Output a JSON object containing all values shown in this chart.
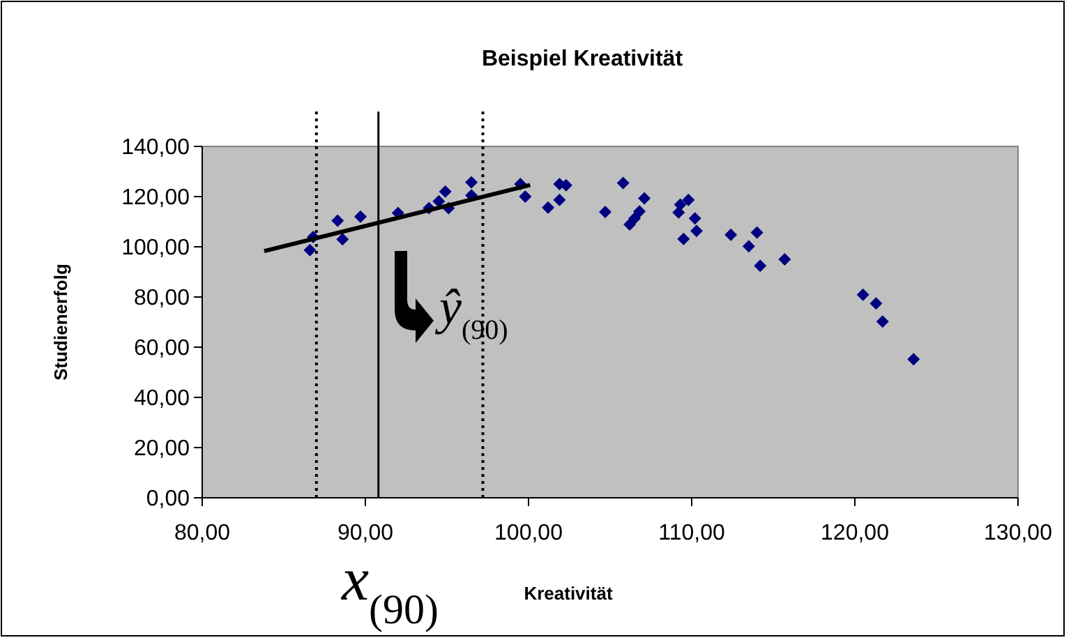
{
  "chart_data": {
    "type": "scatter",
    "title": "Beispiel Kreativität",
    "xlabel": "Kreativität",
    "ylabel": "Studienerfolg",
    "xlim": [
      80,
      130
    ],
    "ylim": [
      0,
      140
    ],
    "xticks": [
      {
        "value": 80,
        "label": "80,00"
      },
      {
        "value": 90,
        "label": "90,00"
      },
      {
        "value": 100,
        "label": "100,00"
      },
      {
        "value": 110,
        "label": "110,00"
      },
      {
        "value": 120,
        "label": "120,00"
      },
      {
        "value": 130,
        "label": "130,00"
      }
    ],
    "yticks": [
      {
        "value": 0,
        "label": "0,00"
      },
      {
        "value": 20,
        "label": "20,00"
      },
      {
        "value": 40,
        "label": "40,00"
      },
      {
        "value": 60,
        "label": "60,00"
      },
      {
        "value": 80,
        "label": "80,00"
      },
      {
        "value": 100,
        "label": "100,00"
      },
      {
        "value": 120,
        "label": "120,00"
      },
      {
        "value": 140,
        "label": "140,00"
      }
    ],
    "grid": false,
    "marker": "diamond",
    "series": [
      {
        "color": "#000080",
        "x": [
          86.6,
          86.8,
          88.3,
          88.6,
          89.7,
          92.0,
          93.9,
          94.5,
          94.9,
          95.1,
          96.5,
          96.5,
          99.5,
          99.8,
          101.2,
          101.9,
          101.9,
          102.3,
          104.7,
          105.8,
          107.1,
          106.2,
          106.5,
          106.8,
          109.2,
          109.3,
          109.8,
          109.5,
          110.2,
          110.3,
          112.4,
          114.0,
          113.5,
          114.2,
          115.7,
          120.5,
          121.3,
          121.7,
          123.6
        ],
        "values": [
          98.7,
          103.9,
          110.4,
          103,
          112,
          113.5,
          115.4,
          118.1,
          122,
          115.4,
          125.7,
          120.5,
          125,
          120,
          115.6,
          118.7,
          125,
          124.5,
          113.9,
          125.4,
          119.3,
          108.9,
          111.3,
          114.1,
          113.7,
          116.8,
          118.7,
          103.1,
          111.3,
          106.3,
          104.8,
          105.7,
          100.2,
          92.4,
          95,
          80.9,
          77.4,
          70.2,
          55.2
        ]
      },
      {
        "type": "line",
        "color": "#000000",
        "marker": "none",
        "x": [
          83.8,
          100.1
        ],
        "values": [
          98.3,
          124.6
        ]
      }
    ],
    "ref_lines": [
      {
        "axis": "x",
        "value": 87.0,
        "line_style": "dotted",
        "color": "#000000"
      },
      {
        "axis": "x",
        "value": 90.8,
        "line_style": "solid",
        "color": "#000000"
      },
      {
        "axis": "x",
        "value": 97.2,
        "line_style": "dotted",
        "color": "#000000"
      }
    ],
    "annotations": [
      "x$_{(90)}$",
      "ŷ$_{(90)}$"
    ]
  }
}
